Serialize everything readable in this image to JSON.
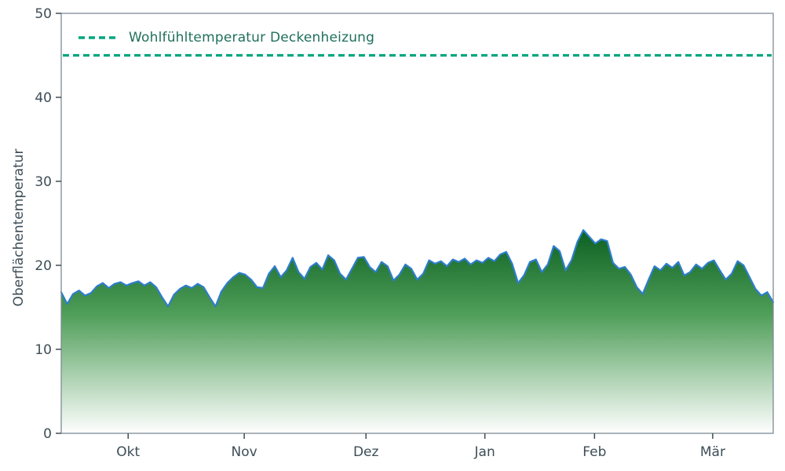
{
  "chart_data": {
    "type": "area",
    "title": "",
    "xlabel": "",
    "ylabel": "Oberflächentemperatur",
    "ylim": [
      0,
      50
    ],
    "grid": false,
    "legend_position": "top-left-inside",
    "y_ticks": [
      0,
      10,
      20,
      30,
      40,
      50
    ],
    "x_ticks": [
      {
        "label": "Okt",
        "pos": 0.094
      },
      {
        "label": "Nov",
        "pos": 0.257
      },
      {
        "label": "Dez",
        "pos": 0.428
      },
      {
        "label": "Jan",
        "pos": 0.595
      },
      {
        "label": "Feb",
        "pos": 0.749
      },
      {
        "label": "Mär",
        "pos": 0.915
      }
    ],
    "reference_line": {
      "label": "Wohlfühltemperatur Deckenheizung",
      "value": 45,
      "color": "#00a57e",
      "label_color": "#1f705c",
      "style": "dashed"
    },
    "colors": {
      "axis": "#7f8a94",
      "tick": "#3d4d57",
      "background": "#ffffff"
    },
    "series": [
      {
        "name": "Oberflächentemperatur",
        "line_color": "#2e7ecc",
        "fill_gradient": [
          {
            "offset": "0%",
            "color": "#0a5e20"
          },
          {
            "offset": "42%",
            "color": "#4f9e59"
          },
          {
            "offset": "100%",
            "color": "#ffffff"
          }
        ],
        "x_span": [
          "Mitte Sep",
          "Mitte Mär"
        ],
        "values": [
          16.8,
          15.4,
          16.6,
          17.0,
          16.4,
          16.7,
          17.5,
          17.9,
          17.3,
          17.8,
          18.0,
          17.6,
          17.9,
          18.1,
          17.6,
          18.0,
          17.4,
          16.2,
          15.1,
          16.5,
          17.2,
          17.6,
          17.3,
          17.8,
          17.4,
          16.2,
          15.1,
          16.9,
          17.9,
          18.6,
          19.1,
          18.9,
          18.3,
          17.4,
          17.3,
          19.0,
          19.9,
          18.6,
          19.4,
          20.9,
          19.2,
          18.4,
          19.8,
          20.3,
          19.5,
          21.2,
          20.6,
          19.0,
          18.3,
          19.6,
          20.9,
          21.0,
          19.8,
          19.2,
          20.4,
          19.9,
          18.2,
          18.9,
          20.1,
          19.6,
          18.3,
          19.0,
          20.6,
          20.2,
          20.5,
          19.9,
          20.7,
          20.4,
          20.8,
          20.1,
          20.6,
          20.3,
          20.9,
          20.5,
          21.3,
          21.6,
          20.2,
          17.9,
          18.8,
          20.4,
          20.7,
          19.2,
          20.1,
          22.3,
          21.7,
          19.4,
          20.6,
          22.8,
          24.2,
          23.4,
          22.6,
          23.1,
          22.9,
          20.3,
          19.6,
          19.8,
          18.9,
          17.4,
          16.6,
          18.3,
          19.9,
          19.4,
          20.2,
          19.7,
          20.4,
          18.8,
          19.2,
          20.1,
          19.6,
          20.3,
          20.6,
          19.4,
          18.3,
          19.0,
          20.5,
          20.0,
          18.6,
          17.2,
          16.4,
          16.8,
          15.6
        ]
      }
    ]
  }
}
